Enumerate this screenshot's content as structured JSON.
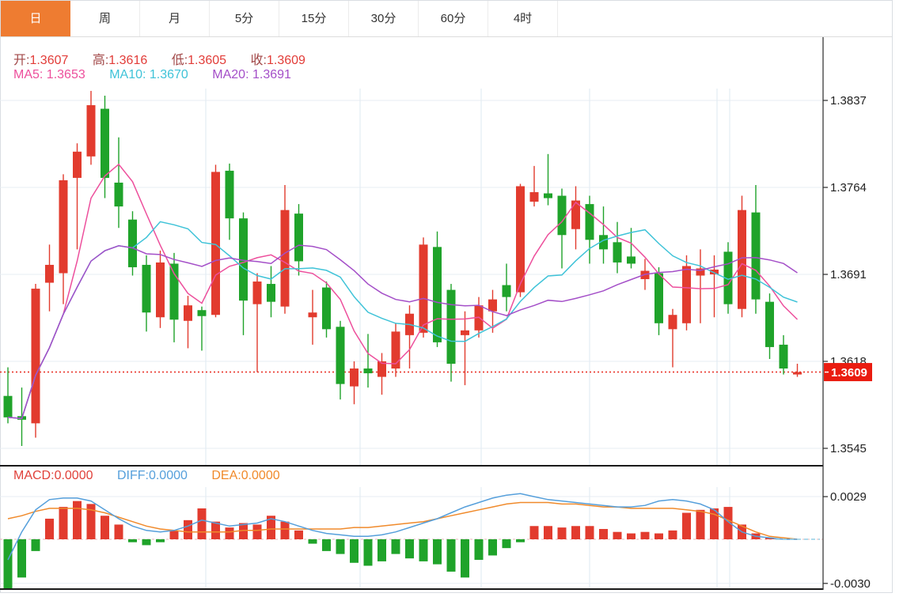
{
  "tabs": {
    "items": [
      {
        "name": "day",
        "label": "日",
        "active": true
      },
      {
        "name": "week",
        "label": "周",
        "active": false
      },
      {
        "name": "month",
        "label": "月",
        "active": false
      },
      {
        "name": "5min",
        "label": "5分",
        "active": false
      },
      {
        "name": "15min",
        "label": "15分",
        "active": false
      },
      {
        "name": "30min",
        "label": "30分",
        "active": false
      },
      {
        "name": "60min",
        "label": "60分",
        "active": false
      },
      {
        "name": "4hour",
        "label": "4时",
        "active": false
      }
    ]
  },
  "legend": {
    "ohlc": {
      "open_label": "开:",
      "open": "1.3607",
      "high_label": "高:",
      "high": "1.3616",
      "low_label": "低:",
      "low": "1.3605",
      "close_label": "收:",
      "close": "1.3609"
    },
    "ma": {
      "ma5_label": "MA5:",
      "ma5": "1.3653",
      "ma10_label": "MA10:",
      "ma10": "1.3670",
      "ma20_label": "MA20:",
      "ma20": "1.3691"
    }
  },
  "macd_legend": {
    "macd_label": "MACD:",
    "macd": "0.0000",
    "diff_label": "DIFF:",
    "diff": "0.0000",
    "dea_label": "DEA:",
    "dea": "0.0000"
  },
  "axes": {
    "last_price": "1.3609",
    "macd_tick_labels": [
      "0.0029",
      "-0.0030"
    ]
  },
  "colors": {
    "up": "#e23b2e",
    "down": "#1fa32a",
    "ma5": "#ed4f9c",
    "ma10": "#3fc3d8",
    "ma20": "#a44fc8",
    "diff": "#559fdb",
    "dea": "#f08a2b",
    "grid": "#e7edf3",
    "vgrid": "#dce8f0",
    "axis": "#222222",
    "badge": "#ea1c10",
    "price_line": "#e8281c",
    "zero_line": "#e8b4b4",
    "dash_ext": "#93cfe6",
    "tab_accent": "#ee7c31"
  },
  "chart_data": {
    "type": "candlestick",
    "panels": [
      {
        "name": "price",
        "y_ticks": [
          1.3837,
          1.3764,
          1.3691,
          1.3618,
          1.3545
        ],
        "last_price": 1.3609,
        "ma_periods": [
          5,
          10,
          20
        ],
        "ma_current": {
          "ma5": 1.3653,
          "ma10": 1.367,
          "ma20": 1.3691
        },
        "ohlc": [
          [
            1.3589,
            1.3613,
            1.3566,
            1.3571
          ],
          [
            1.3572,
            1.3596,
            1.3547,
            1.3569
          ],
          [
            1.3566,
            1.3683,
            1.3554,
            1.3679
          ],
          [
            1.3684,
            1.3716,
            1.366,
            1.3699
          ],
          [
            1.3692,
            1.3775,
            1.3666,
            1.377
          ],
          [
            1.3772,
            1.3801,
            1.3712,
            1.3794
          ],
          [
            1.379,
            1.3845,
            1.3783,
            1.3833
          ],
          [
            1.383,
            1.3841,
            1.3755,
            1.3772
          ],
          [
            1.3768,
            1.3806,
            1.373,
            1.3748
          ],
          [
            1.3737,
            1.3744,
            1.369,
            1.3697
          ],
          [
            1.3699,
            1.3707,
            1.3643,
            1.3659
          ],
          [
            1.3655,
            1.3711,
            1.3646,
            1.3701
          ],
          [
            1.37,
            1.3709,
            1.3634,
            1.3653
          ],
          [
            1.3652,
            1.3673,
            1.3629,
            1.3665
          ],
          [
            1.3661,
            1.3664,
            1.3627,
            1.3656
          ],
          [
            1.3657,
            1.3783,
            1.3655,
            1.3777
          ],
          [
            1.3778,
            1.3784,
            1.372,
            1.3738
          ],
          [
            1.3738,
            1.3743,
            1.364,
            1.3669
          ],
          [
            1.3666,
            1.3692,
            1.3609,
            1.3685
          ],
          [
            1.3683,
            1.3698,
            1.3655,
            1.3668
          ],
          [
            1.3664,
            1.3766,
            1.3658,
            1.3745
          ],
          [
            1.3742,
            1.375,
            1.369,
            1.3702
          ],
          [
            1.3655,
            1.3678,
            1.3632,
            1.3659
          ],
          [
            1.368,
            1.3685,
            1.3638,
            1.3645
          ],
          [
            1.3647,
            1.3652,
            1.3586,
            1.3599
          ],
          [
            1.3597,
            1.3618,
            1.3582,
            1.3612
          ],
          [
            1.3612,
            1.3641,
            1.3596,
            1.3608
          ],
          [
            1.3605,
            1.3625,
            1.359,
            1.3618
          ],
          [
            1.3612,
            1.365,
            1.3605,
            1.3643
          ],
          [
            1.364,
            1.3665,
            1.3612,
            1.3658
          ],
          [
            1.3642,
            1.3722,
            1.3638,
            1.3716
          ],
          [
            1.3714,
            1.3727,
            1.363,
            1.3634
          ],
          [
            1.3678,
            1.3683,
            1.3601,
            1.3616
          ],
          [
            1.364,
            1.366,
            1.3598,
            1.3644
          ],
          [
            1.3644,
            1.3672,
            1.3638,
            1.3665
          ],
          [
            1.366,
            1.3678,
            1.3642,
            1.367
          ],
          [
            1.3682,
            1.37,
            1.366,
            1.3672
          ],
          [
            1.3676,
            1.3767,
            1.3672,
            1.3765
          ],
          [
            1.3752,
            1.3782,
            1.3748,
            1.376
          ],
          [
            1.3759,
            1.3792,
            1.3749,
            1.3755
          ],
          [
            1.3757,
            1.3763,
            1.3696,
            1.3724
          ],
          [
            1.3729,
            1.3765,
            1.3712,
            1.3753
          ],
          [
            1.375,
            1.3757,
            1.37,
            1.372
          ],
          [
            1.3724,
            1.3748,
            1.37,
            1.3712
          ],
          [
            1.3718,
            1.3735,
            1.3692,
            1.3701
          ],
          [
            1.3706,
            1.373,
            1.3696,
            1.37
          ],
          [
            1.3687,
            1.3704,
            1.3678,
            1.3694
          ],
          [
            1.3692,
            1.3697,
            1.364,
            1.365
          ],
          [
            1.3645,
            1.3662,
            1.3613,
            1.3657
          ],
          [
            1.365,
            1.3707,
            1.3644,
            1.3698
          ],
          [
            1.369,
            1.3712,
            1.365,
            1.3696
          ],
          [
            1.3691,
            1.3707,
            1.3655,
            1.3695
          ],
          [
            1.371,
            1.3718,
            1.3658,
            1.3666
          ],
          [
            1.3662,
            1.3757,
            1.3655,
            1.3745
          ],
          [
            1.3743,
            1.3766,
            1.3658,
            1.367
          ],
          [
            1.3668,
            1.3675,
            1.362,
            1.363
          ],
          [
            1.3632,
            1.364,
            1.3607,
            1.3612
          ],
          [
            1.3607,
            1.3616,
            1.3605,
            1.3609
          ]
        ]
      },
      {
        "name": "macd",
        "unit": 0.0001,
        "y_ticks": [
          0.0029,
          -0.003
        ],
        "hist": [
          -34,
          -26,
          -8,
          14,
          22,
          26,
          24,
          16,
          10,
          -2,
          -4,
          -2,
          6,
          13,
          21,
          12,
          8,
          11,
          10,
          16,
          12,
          6,
          -3,
          -8,
          -10,
          -16,
          -18,
          -15,
          -10,
          -13,
          -15,
          -17,
          -22,
          -26,
          -14,
          -11,
          -6,
          -2,
          9,
          9,
          8,
          9,
          9,
          7,
          5,
          4,
          5,
          4,
          6,
          18,
          20,
          21,
          22,
          10,
          4,
          1,
          0,
          0
        ],
        "diff": [
          -14,
          5,
          20,
          27,
          28,
          28,
          26,
          20,
          14,
          9,
          6,
          5,
          6,
          9,
          13,
          11,
          9,
          10,
          11,
          14,
          12,
          9,
          6,
          4,
          3,
          2,
          2,
          3,
          5,
          8,
          11,
          14,
          18,
          22,
          25,
          28,
          30,
          31,
          29,
          27,
          26,
          25,
          24,
          23,
          22,
          22,
          23,
          26,
          27,
          26,
          24,
          20,
          12,
          5,
          2,
          1,
          0,
          0
        ],
        "dea": [
          14,
          16,
          19,
          21,
          21,
          21,
          20,
          18,
          15,
          12,
          9,
          7,
          6,
          5,
          5,
          5,
          5,
          6,
          6,
          7,
          7,
          7,
          7,
          7,
          7,
          8,
          8,
          9,
          10,
          11,
          12,
          14,
          16,
          18,
          20,
          22,
          24,
          25,
          25,
          25,
          24,
          24,
          23,
          22,
          22,
          21,
          21,
          21,
          21,
          20,
          19,
          17,
          13,
          9,
          5,
          2,
          1,
          0
        ]
      }
    ]
  }
}
